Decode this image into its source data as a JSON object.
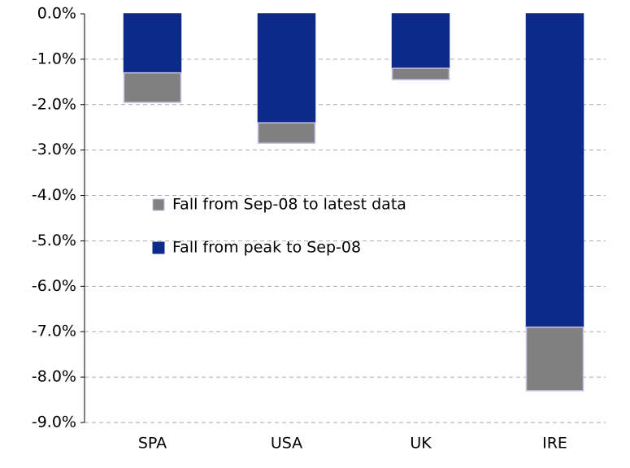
{
  "chart_data": {
    "type": "stacked-bar",
    "categories": [
      "SPA",
      "USA",
      "UK",
      "IRE"
    ],
    "series": [
      {
        "name": "Fall from peak to Sep-08",
        "color": "#0d2a8a",
        "values": [
          -1.3,
          -2.4,
          -1.2,
          -6.9
        ]
      },
      {
        "name": "Fall from Sep-08 to latest data",
        "color": "#808080",
        "values": [
          -0.65,
          -0.45,
          -0.25,
          -1.4
        ]
      }
    ],
    "ylim": [
      -9,
      0
    ],
    "yticks": [
      {
        "value": 0,
        "label": "0.0%"
      },
      {
        "value": -1,
        "label": "-1.0%"
      },
      {
        "value": -2,
        "label": "-2.0%"
      },
      {
        "value": -3,
        "label": "-3.0%"
      },
      {
        "value": -4,
        "label": "-4.0%"
      },
      {
        "value": -5,
        "label": "-5.0%"
      },
      {
        "value": -6,
        "label": "-6.0%"
      },
      {
        "value": -7,
        "label": "-7.0%"
      },
      {
        "value": -8,
        "label": "-8.0%"
      },
      {
        "value": -9,
        "label": "-9.0%"
      }
    ],
    "grid": true
  }
}
